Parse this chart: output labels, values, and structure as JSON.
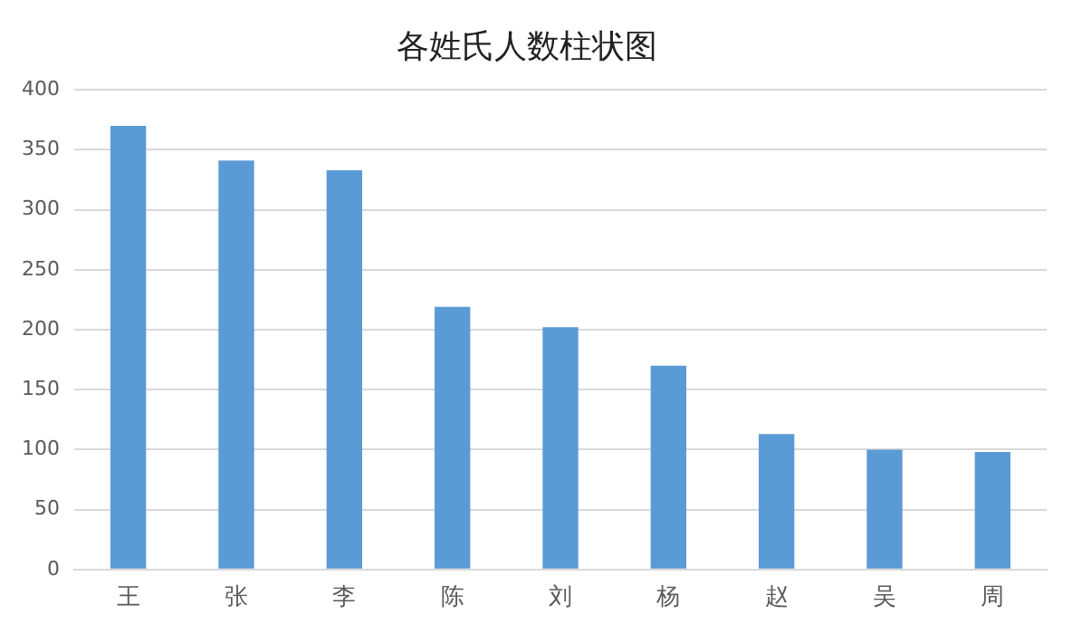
{
  "chart_data": {
    "type": "bar",
    "title": "各姓氏人数柱状图",
    "categories": [
      "王",
      "张",
      "李",
      "陈",
      "刘",
      "杨",
      "赵",
      "吴",
      "周"
    ],
    "values": [
      370,
      341,
      333,
      219,
      202,
      170,
      113,
      100,
      98
    ],
    "color": "#5b9bd5",
    "ylim": [
      0,
      400
    ],
    "yticks": [
      0,
      50,
      100,
      150,
      200,
      250,
      300,
      350,
      400
    ],
    "grid": "y",
    "legend": false
  }
}
